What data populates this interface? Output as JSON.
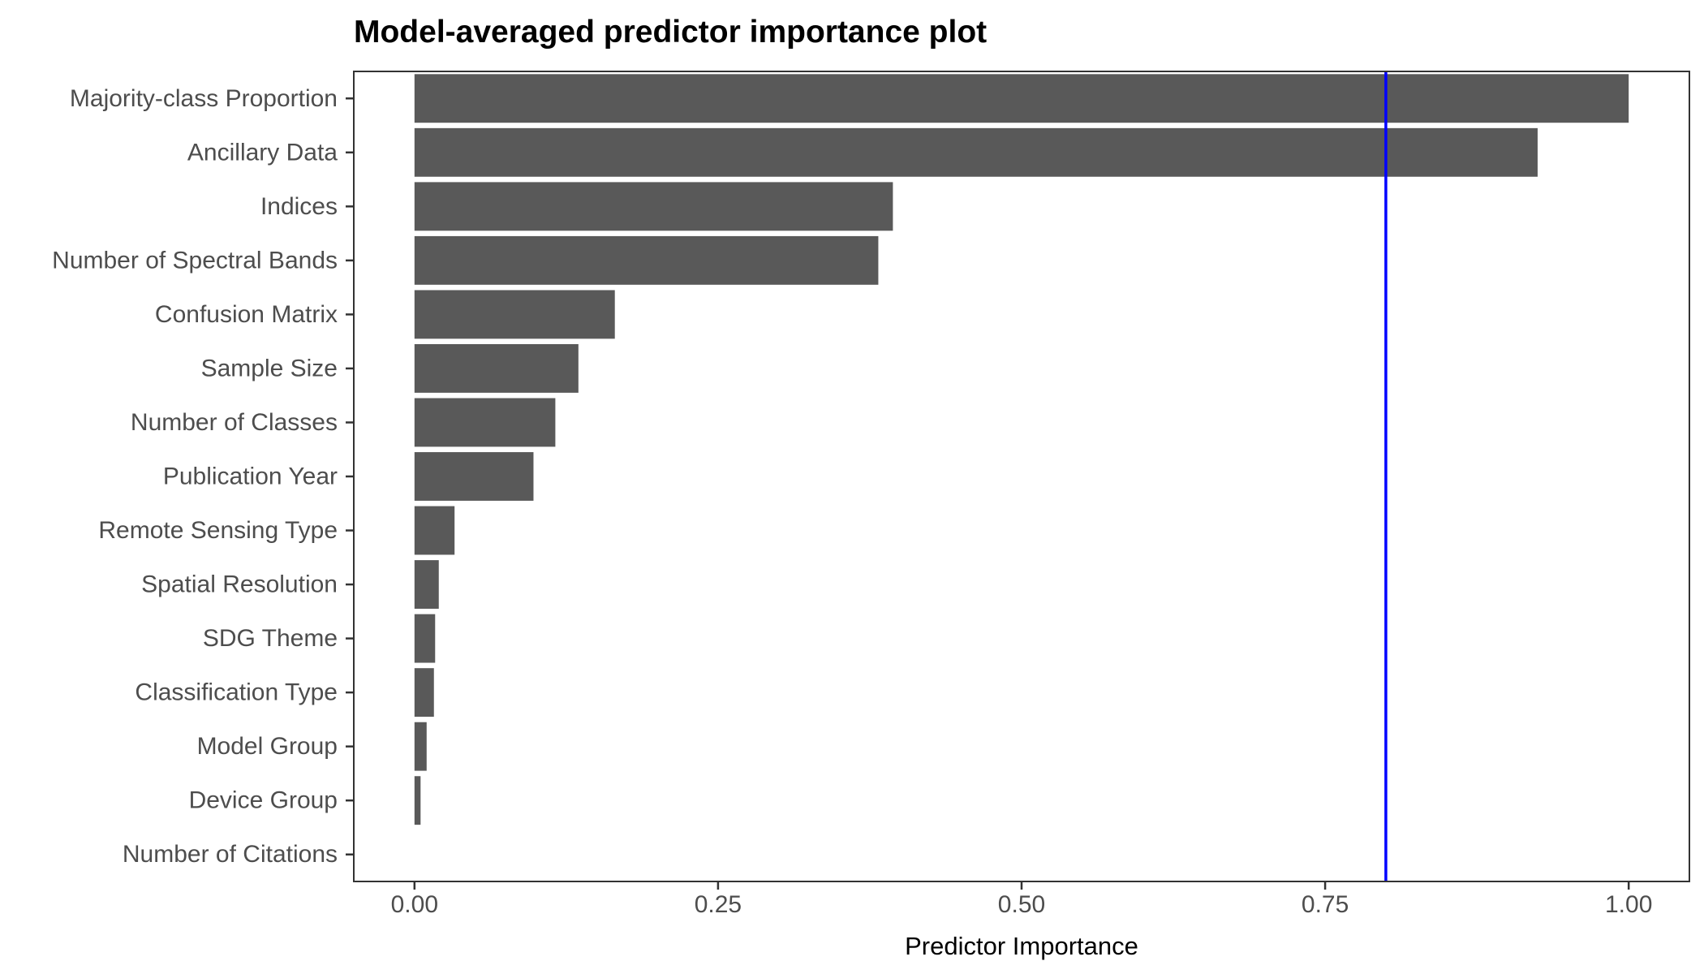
{
  "chart_data": {
    "type": "bar",
    "orientation": "horizontal",
    "title": "Model-averaged predictor importance plot",
    "xlabel": "Predictor Importance",
    "ylabel": "",
    "xlim": [
      -0.05,
      1.05
    ],
    "x_ticks": [
      0.0,
      0.25,
      0.5,
      0.75,
      1.0
    ],
    "x_tick_labels": [
      "0.00",
      "0.25",
      "0.50",
      "0.75",
      "1.00"
    ],
    "categories": [
      "Majority-class Proportion",
      "Ancillary Data",
      "Indices",
      "Number of Spectral Bands",
      "Confusion Matrix",
      "Sample Size",
      "Number of Classes",
      "Publication Year",
      "Remote Sensing Type",
      "Spatial Resolution",
      "SDG Theme",
      "Classification Type",
      "Model Group",
      "Device Group",
      "Number of Citations"
    ],
    "values": [
      1.0,
      0.925,
      0.394,
      0.382,
      0.165,
      0.135,
      0.116,
      0.098,
      0.033,
      0.02,
      0.017,
      0.016,
      0.01,
      0.005,
      0.0
    ],
    "reference_line": {
      "x": 0.8,
      "color": "#0000ff"
    },
    "bar_color": "#595959",
    "grid": false,
    "legend": "none"
  }
}
